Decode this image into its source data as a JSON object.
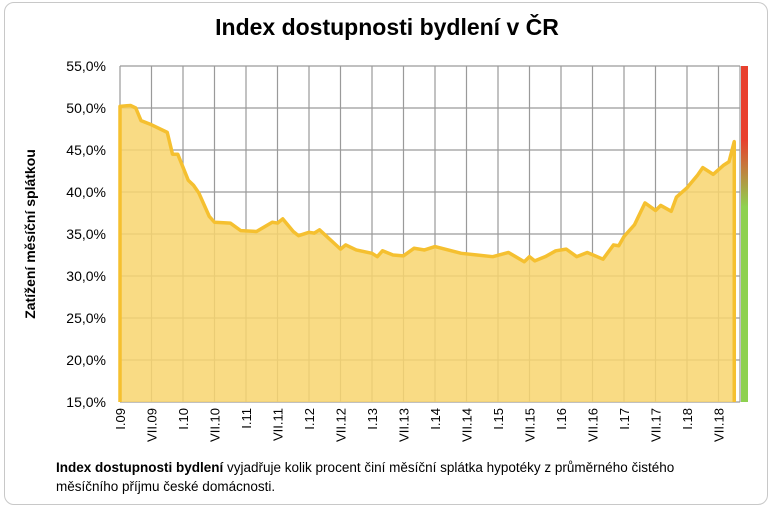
{
  "chart_data": {
    "type": "area",
    "title": "Index dostupnosti bydlení  v ČR",
    "xlabel": "",
    "ylabel": "Zatížení měsíční splátkou",
    "ylim": [
      15,
      55
    ],
    "yticks": [
      "55,0%",
      "50,0%",
      "45,0%",
      "40,0%",
      "35,0%",
      "30,0%",
      "25,0%",
      "20,0%",
      "15,0%"
    ],
    "xticks": [
      "I.09",
      "VII.09",
      "I.10",
      "VII.10",
      "I.11",
      "VII.11",
      "I.12",
      "VII.12",
      "I.13",
      "VII.13",
      "I.14",
      "VII.14",
      "I.15",
      "VII.15",
      "I.16",
      "VII.16",
      "I.17",
      "VII.17",
      "I.18",
      "VII.18"
    ],
    "grid": true,
    "colors": {
      "line": "#f5c030",
      "fill": "#f8d56e",
      "scale_top": "#e8402e",
      "scale_bottom": "#8ed150"
    },
    "series": [
      {
        "x": [
          "2009-01",
          "2009-03",
          "2009-04",
          "2009-05",
          "2009-07",
          "2009-10",
          "2009-11",
          "2009-12",
          "2010-02",
          "2010-03",
          "2010-04",
          "2010-06",
          "2010-07",
          "2010-10",
          "2010-12",
          "2011-03",
          "2011-06",
          "2011-07",
          "2011-08",
          "2011-10",
          "2011-11",
          "2012-01",
          "2012-02",
          "2012-03",
          "2012-07",
          "2012-08",
          "2012-10",
          "2013-01",
          "2013-02",
          "2013-03",
          "2013-05",
          "2013-07",
          "2013-09",
          "2013-11",
          "2014-01",
          "2014-06",
          "2014-09",
          "2014-12",
          "2015-03",
          "2015-06",
          "2015-07",
          "2015-08",
          "2015-10",
          "2015-12",
          "2016-02",
          "2016-04",
          "2016-06",
          "2016-09",
          "2016-11",
          "2016-12",
          "2017-01",
          "2017-03",
          "2017-05",
          "2017-07",
          "2017-08",
          "2017-10",
          "2017-11",
          "2018-01",
          "2018-03",
          "2018-04",
          "2018-06",
          "2018-08",
          "2018-09",
          "2018-10"
        ],
        "values": [
          50.2,
          50.3,
          50.0,
          48.5,
          48.0,
          47.1,
          44.5,
          44.5,
          41.4,
          40.8,
          39.9,
          37.1,
          36.4,
          36.3,
          35.4,
          35.3,
          36.4,
          36.3,
          36.8,
          35.3,
          34.8,
          35.2,
          35.1,
          35.5,
          33.2,
          33.7,
          33.1,
          32.7,
          32.3,
          33.0,
          32.5,
          32.4,
          33.3,
          33.1,
          33.5,
          32.7,
          32.5,
          32.3,
          32.8,
          31.7,
          32.3,
          31.8,
          32.3,
          33.0,
          33.2,
          32.3,
          32.8,
          32.0,
          33.7,
          33.6,
          34.7,
          36.1,
          38.7,
          37.8,
          38.4,
          37.7,
          39.4,
          40.5,
          42.0,
          42.9,
          42.1,
          43.2,
          43.6,
          46.0
        ]
      }
    ]
  },
  "caption": {
    "bold": "Index dostupnosti bydlení",
    "text": " vyjadřuje kolik procent činí  měsíční splátka hypotéky z průměrného čistého měsíčního příjmu české domácnosti."
  }
}
